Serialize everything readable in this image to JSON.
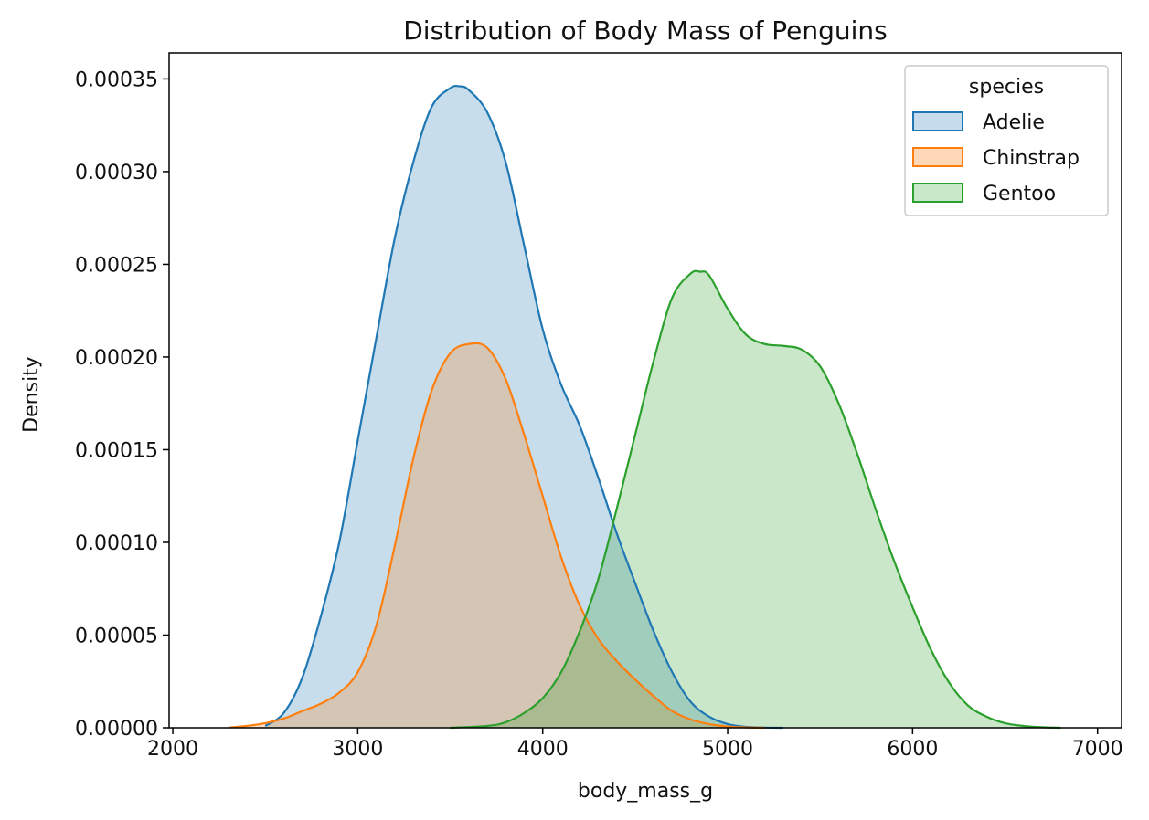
{
  "chart_data": {
    "type": "area",
    "title": "Distribution of Body Mass of Penguins",
    "xlabel": "body_mass_g",
    "ylabel": "Density",
    "xlim": [
      1980,
      7130
    ],
    "ylim": [
      0,
      0.000364
    ],
    "x_ticks": [
      2000,
      3000,
      4000,
      5000,
      6000,
      7000
    ],
    "x_tick_labels": [
      "2000",
      "3000",
      "4000",
      "5000",
      "6000",
      "7000"
    ],
    "y_ticks": [
      0,
      5e-05,
      0.0001,
      0.00015,
      0.0002,
      0.00025,
      0.0003,
      0.00035
    ],
    "y_tick_labels": [
      "0.00000",
      "0.00005",
      "0.00010",
      "0.00015",
      "0.00020",
      "0.00025",
      "0.00030",
      "0.00035"
    ],
    "grid": false,
    "legend": {
      "title": "species",
      "position": "top-right"
    },
    "series": [
      {
        "name": "Adelie",
        "color": "#1f77b4",
        "fill_color": "#c6dcec",
        "x": [
          2500,
          2600,
          2700,
          2800,
          2900,
          3000,
          3100,
          3200,
          3300,
          3400,
          3500,
          3550,
          3600,
          3700,
          3800,
          3900,
          4000,
          4100,
          4200,
          4300,
          4400,
          4500,
          4600,
          4700,
          4800,
          4900,
          5000,
          5100,
          5200,
          5300
        ],
        "y": [
          1e-06,
          8e-06,
          2.7e-05,
          6e-05,
          0.0001,
          0.000155,
          0.00021,
          0.000264,
          0.000305,
          0.000335,
          0.000345,
          0.000346,
          0.000344,
          0.000332,
          0.000305,
          0.00026,
          0.000215,
          0.000185,
          0.000163,
          0.000135,
          0.000105,
          7.8e-05,
          5.2e-05,
          3e-05,
          1.4e-05,
          6e-06,
          2e-06,
          5e-07,
          1e-07,
          0
        ]
      },
      {
        "name": "Chinstrap",
        "color": "#ff7f0e",
        "fill_color": "#ffd9b7",
        "x": [
          2300,
          2400,
          2500,
          2600,
          2700,
          2800,
          2900,
          3000,
          3100,
          3200,
          3300,
          3400,
          3500,
          3600,
          3700,
          3800,
          3900,
          4000,
          4100,
          4200,
          4300,
          4400,
          4500,
          4600,
          4700,
          4800,
          4900,
          5000,
          5100,
          5200
        ],
        "y": [
          1e-07,
          1e-06,
          2.5e-06,
          5e-06,
          9e-06,
          1.3e-05,
          1.9e-05,
          3e-05,
          5.5e-05,
          9.8e-05,
          0.000145,
          0.000182,
          0.000202,
          0.000207,
          0.000205,
          0.000188,
          0.000158,
          0.000125,
          9.2e-05,
          6.6e-05,
          4.8e-05,
          3.6e-05,
          2.6e-05,
          1.7e-05,
          9e-06,
          4.5e-06,
          2e-06,
          7e-07,
          2e-07,
          0
        ]
      },
      {
        "name": "Gentoo",
        "color": "#2ca02c",
        "fill_color": "#c9e7c9",
        "x": [
          3500,
          3700,
          3800,
          3900,
          4000,
          4100,
          4200,
          4300,
          4400,
          4500,
          4600,
          4700,
          4800,
          4850,
          4900,
          5000,
          5100,
          5200,
          5300,
          5400,
          5500,
          5600,
          5700,
          5800,
          5900,
          6000,
          6100,
          6200,
          6300,
          6400,
          6500,
          6600,
          6700,
          6800
        ],
        "y": [
          0,
          1e-06,
          3e-06,
          8e-06,
          1.6e-05,
          3e-05,
          5.2e-05,
          8e-05,
          0.000118,
          0.000158,
          0.000198,
          0.000232,
          0.000245,
          0.000246,
          0.000244,
          0.000226,
          0.000212,
          0.000207,
          0.000206,
          0.000204,
          0.000195,
          0.000175,
          0.000148,
          0.000118,
          9e-05,
          6.5e-05,
          4.2e-05,
          2.4e-05,
          1.2e-05,
          6e-06,
          2.5e-06,
          1e-06,
          3e-07,
          0
        ]
      }
    ]
  }
}
